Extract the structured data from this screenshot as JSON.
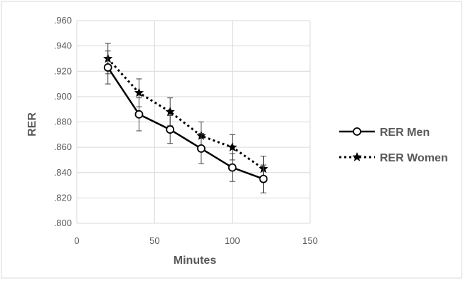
{
  "chart_data": {
    "type": "line",
    "title": "",
    "xlabel": "Minutes",
    "ylabel": "RER",
    "xlim": [
      0,
      150
    ],
    "ylim": [
      0.8,
      0.96
    ],
    "x_ticks": [
      "0",
      "50",
      "100",
      "150"
    ],
    "y_ticks": [
      ".800",
      ".820",
      ".840",
      ".860",
      ".880",
      ".900",
      ".920",
      ".940",
      ".960"
    ],
    "grid": true,
    "legend_position": "right",
    "x": [
      20,
      40,
      60,
      80,
      100,
      120
    ],
    "series": [
      {
        "name": "RER Men",
        "values": [
          0.923,
          0.886,
          0.874,
          0.859,
          0.844,
          0.835
        ],
        "error": [
          0.013,
          0.013,
          0.011,
          0.012,
          0.011,
          0.011
        ],
        "line_style": "solid",
        "marker": "circle",
        "color": "#000000"
      },
      {
        "name": "RER Women",
        "values": [
          0.93,
          0.903,
          0.888,
          0.869,
          0.86,
          0.843
        ],
        "error": [
          0.012,
          0.011,
          0.011,
          0.011,
          0.01,
          0.01
        ],
        "line_style": "dotted",
        "marker": "star",
        "color": "#000000"
      }
    ],
    "colors": {
      "grid": "#d9d9d9",
      "axis_text": "#595959",
      "frame": "#d9d9d9"
    }
  }
}
